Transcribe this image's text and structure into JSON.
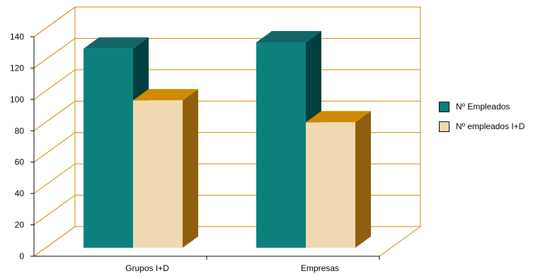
{
  "chart_data": {
    "type": "bar",
    "three_d": true,
    "categories": [
      "Grupos I+D",
      "Empresas"
    ],
    "series": [
      {
        "name": "Nº Empleados",
        "values": [
          127,
          131
        ],
        "color": "#0d807e",
        "side_color": "#00403f",
        "top_color": "#116665"
      },
      {
        "name": "Nº empleados I+D",
        "values": [
          94,
          80
        ],
        "color": "#f0d8b1",
        "side_color": "#8f5e0e",
        "top_color": "#d08a00"
      }
    ],
    "ylim": [
      0,
      140
    ],
    "yticks": [
      0,
      20,
      40,
      60,
      80,
      100,
      120,
      140
    ],
    "grid": true,
    "grid_color": "#cc8800",
    "legend_position": "right"
  }
}
